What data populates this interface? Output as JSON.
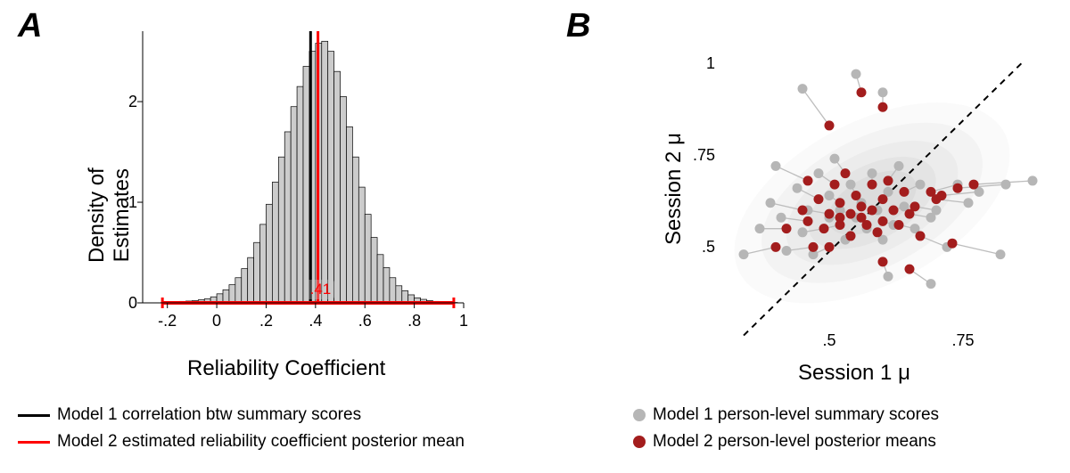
{
  "panelA": {
    "label": "A",
    "xlabel": "Reliability Coefficient",
    "ylabel": "Density of\nEstimates",
    "xlim": [
      -0.3,
      1.0
    ],
    "ylim": [
      0,
      2.7
    ],
    "xticks": [
      -0.2,
      0,
      0.2,
      0.4,
      0.6,
      0.8,
      1
    ],
    "xtick_labels": [
      "-.2",
      "0",
      ".2",
      ".4",
      ".6",
      ".8",
      "1"
    ],
    "yticks": [
      0,
      1,
      2
    ],
    "bar_fill": "#cccccc",
    "bar_stroke": "#000000",
    "vline1_x": 0.38,
    "vline1_color": "#000000",
    "vline2_x": 0.41,
    "vline2_color": "#ff0000",
    "vline2_label": ".41",
    "red_range": [
      -0.22,
      0.96
    ],
    "red_range_color": "#ff0000",
    "bins": [
      {
        "x": -0.225,
        "h": 0.005
      },
      {
        "x": -0.2,
        "h": 0.01
      },
      {
        "x": -0.175,
        "h": 0.01
      },
      {
        "x": -0.15,
        "h": 0.015
      },
      {
        "x": -0.125,
        "h": 0.018
      },
      {
        "x": -0.1,
        "h": 0.022
      },
      {
        "x": -0.075,
        "h": 0.03
      },
      {
        "x": -0.05,
        "h": 0.04
      },
      {
        "x": -0.025,
        "h": 0.06
      },
      {
        "x": 0.0,
        "h": 0.09
      },
      {
        "x": 0.025,
        "h": 0.13
      },
      {
        "x": 0.05,
        "h": 0.18
      },
      {
        "x": 0.075,
        "h": 0.25
      },
      {
        "x": 0.1,
        "h": 0.34
      },
      {
        "x": 0.125,
        "h": 0.45
      },
      {
        "x": 0.15,
        "h": 0.6
      },
      {
        "x": 0.175,
        "h": 0.78
      },
      {
        "x": 0.2,
        "h": 0.98
      },
      {
        "x": 0.225,
        "h": 1.2
      },
      {
        "x": 0.25,
        "h": 1.45
      },
      {
        "x": 0.275,
        "h": 1.7
      },
      {
        "x": 0.3,
        "h": 1.95
      },
      {
        "x": 0.325,
        "h": 2.15
      },
      {
        "x": 0.35,
        "h": 2.35
      },
      {
        "x": 0.375,
        "h": 2.5
      },
      {
        "x": 0.4,
        "h": 2.58
      },
      {
        "x": 0.425,
        "h": 2.6
      },
      {
        "x": 0.45,
        "h": 2.5
      },
      {
        "x": 0.475,
        "h": 2.3
      },
      {
        "x": 0.5,
        "h": 2.05
      },
      {
        "x": 0.525,
        "h": 1.75
      },
      {
        "x": 0.55,
        "h": 1.45
      },
      {
        "x": 0.575,
        "h": 1.15
      },
      {
        "x": 0.6,
        "h": 0.88
      },
      {
        "x": 0.625,
        "h": 0.65
      },
      {
        "x": 0.65,
        "h": 0.48
      },
      {
        "x": 0.675,
        "h": 0.35
      },
      {
        "x": 0.7,
        "h": 0.25
      },
      {
        "x": 0.725,
        "h": 0.17
      },
      {
        "x": 0.75,
        "h": 0.12
      },
      {
        "x": 0.775,
        "h": 0.08
      },
      {
        "x": 0.8,
        "h": 0.05
      },
      {
        "x": 0.825,
        "h": 0.035
      },
      {
        "x": 0.85,
        "h": 0.022
      },
      {
        "x": 0.875,
        "h": 0.015
      },
      {
        "x": 0.9,
        "h": 0.01
      },
      {
        "x": 0.925,
        "h": 0.006
      },
      {
        "x": 0.95,
        "h": 0.004
      }
    ],
    "bin_width": 0.025,
    "legend": [
      {
        "color": "#000000",
        "label": "Model 1 correlation btw summary scores"
      },
      {
        "color": "#ff0000",
        "label": "Model 2 estimated reliability coefficient posterior mean"
      }
    ]
  },
  "panelB": {
    "label": "B",
    "xlabel": "Session 1 μ",
    "ylabel": "Session 2 μ",
    "xlim": [
      0.3,
      0.9
    ],
    "ylim": [
      0.3,
      1.05
    ],
    "xticks": [
      0.5,
      0.75
    ],
    "xtick_labels": [
      ".5",
      ".75"
    ],
    "yticks": [
      0.5,
      0.75,
      1
    ],
    "ytick_labels": [
      ".5",
      ".75",
      "1"
    ],
    "grey_color": "#b6b6b6",
    "red_color": "#a31d1d",
    "connector_color": "#bdbdbd",
    "ellipse_center": [
      0.58,
      0.62
    ],
    "ellipse_angle": 28,
    "ellipses": [
      {
        "rx": 0.28,
        "ry": 0.22,
        "fill": "#fafafa"
      },
      {
        "rx": 0.225,
        "ry": 0.175,
        "fill": "#f3f3f3"
      },
      {
        "rx": 0.175,
        "ry": 0.135,
        "fill": "#ececec"
      },
      {
        "rx": 0.13,
        "ry": 0.1,
        "fill": "#e4e4e4"
      },
      {
        "rx": 0.09,
        "ry": 0.07,
        "fill": "#dcdcdc"
      }
    ],
    "diag_line": {
      "x1": 0.34,
      "y1": 0.26,
      "x2": 0.86,
      "y2": 1.0
    },
    "pairs": [
      {
        "g": [
          0.34,
          0.48
        ],
        "r": [
          0.4,
          0.5
        ]
      },
      {
        "g": [
          0.37,
          0.55
        ],
        "r": [
          0.42,
          0.55
        ]
      },
      {
        "g": [
          0.39,
          0.62
        ],
        "r": [
          0.45,
          0.6
        ]
      },
      {
        "g": [
          0.4,
          0.72
        ],
        "r": [
          0.46,
          0.68
        ]
      },
      {
        "g": [
          0.41,
          0.58
        ],
        "r": [
          0.46,
          0.57
        ]
      },
      {
        "g": [
          0.42,
          0.49
        ],
        "r": [
          0.47,
          0.5
        ]
      },
      {
        "g": [
          0.44,
          0.66
        ],
        "r": [
          0.48,
          0.63
        ]
      },
      {
        "g": [
          0.45,
          0.54
        ],
        "r": [
          0.49,
          0.55
        ]
      },
      {
        "g": [
          0.46,
          0.6
        ],
        "r": [
          0.5,
          0.59
        ]
      },
      {
        "g": [
          0.47,
          0.48
        ],
        "r": [
          0.5,
          0.5
        ]
      },
      {
        "g": [
          0.48,
          0.7
        ],
        "r": [
          0.51,
          0.67
        ]
      },
      {
        "g": [
          0.49,
          0.55
        ],
        "r": [
          0.52,
          0.56
        ]
      },
      {
        "g": [
          0.5,
          0.64
        ],
        "r": [
          0.52,
          0.62
        ]
      },
      {
        "g": [
          0.5,
          0.58
        ],
        "r": [
          0.52,
          0.58
        ]
      },
      {
        "g": [
          0.51,
          0.74
        ],
        "r": [
          0.53,
          0.7
        ]
      },
      {
        "g": [
          0.52,
          0.6
        ],
        "r": [
          0.54,
          0.59
        ]
      },
      {
        "g": [
          0.53,
          0.52
        ],
        "r": [
          0.54,
          0.53
        ]
      },
      {
        "g": [
          0.54,
          0.67
        ],
        "r": [
          0.55,
          0.64
        ]
      },
      {
        "g": [
          0.55,
          0.58
        ],
        "r": [
          0.56,
          0.58
        ]
      },
      {
        "g": [
          0.56,
          0.62
        ],
        "r": [
          0.56,
          0.61
        ]
      },
      {
        "g": [
          0.57,
          0.55
        ],
        "r": [
          0.57,
          0.56
        ]
      },
      {
        "g": [
          0.58,
          0.7
        ],
        "r": [
          0.58,
          0.67
        ]
      },
      {
        "g": [
          0.59,
          0.6
        ],
        "r": [
          0.58,
          0.6
        ]
      },
      {
        "g": [
          0.6,
          0.52
        ],
        "r": [
          0.59,
          0.54
        ]
      },
      {
        "g": [
          0.61,
          0.65
        ],
        "r": [
          0.6,
          0.63
        ]
      },
      {
        "g": [
          0.62,
          0.56
        ],
        "r": [
          0.6,
          0.57
        ]
      },
      {
        "g": [
          0.63,
          0.72
        ],
        "r": [
          0.61,
          0.68
        ]
      },
      {
        "g": [
          0.64,
          0.61
        ],
        "r": [
          0.62,
          0.6
        ]
      },
      {
        "g": [
          0.66,
          0.55
        ],
        "r": [
          0.63,
          0.56
        ]
      },
      {
        "g": [
          0.67,
          0.67
        ],
        "r": [
          0.64,
          0.65
        ]
      },
      {
        "g": [
          0.69,
          0.58
        ],
        "r": [
          0.65,
          0.59
        ]
      },
      {
        "g": [
          0.7,
          0.6
        ],
        "r": [
          0.66,
          0.61
        ]
      },
      {
        "g": [
          0.72,
          0.5
        ],
        "r": [
          0.67,
          0.53
        ]
      },
      {
        "g": [
          0.74,
          0.67
        ],
        "r": [
          0.69,
          0.65
        ]
      },
      {
        "g": [
          0.76,
          0.62
        ],
        "r": [
          0.7,
          0.63
        ]
      },
      {
        "g": [
          0.78,
          0.65
        ],
        "r": [
          0.71,
          0.64
        ]
      },
      {
        "g": [
          0.83,
          0.67
        ],
        "r": [
          0.74,
          0.66
        ]
      },
      {
        "g": [
          0.88,
          0.68
        ],
        "r": [
          0.77,
          0.67
        ]
      },
      {
        "g": [
          0.45,
          0.93
        ],
        "r": [
          0.5,
          0.83
        ]
      },
      {
        "g": [
          0.55,
          0.97
        ],
        "r": [
          0.56,
          0.92
        ]
      },
      {
        "g": [
          0.6,
          0.92
        ],
        "r": [
          0.6,
          0.88
        ]
      },
      {
        "g": [
          0.61,
          0.42
        ],
        "r": [
          0.6,
          0.46
        ]
      },
      {
        "g": [
          0.69,
          0.4
        ],
        "r": [
          0.65,
          0.44
        ]
      },
      {
        "g": [
          0.82,
          0.48
        ],
        "r": [
          0.73,
          0.51
        ]
      }
    ],
    "legend": [
      {
        "color": "#b6b6b6",
        "label": "Model 1 person-level summary scores"
      },
      {
        "color": "#a31d1d",
        "label": "Model 2 person-level posterior means"
      }
    ]
  }
}
